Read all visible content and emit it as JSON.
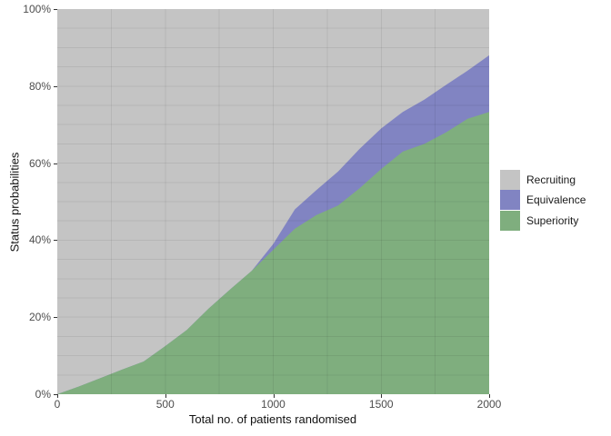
{
  "figure": {
    "x_axis": {
      "title": "Total no. of patients randomised",
      "tick_values": [
        0,
        500,
        1000,
        1500,
        2000
      ],
      "tick_labels": [
        "0",
        "500",
        "1000",
        "1500",
        "2000"
      ],
      "range": [
        0,
        2000
      ]
    },
    "y_axis": {
      "title": "Status probabilities",
      "tick_values": [
        0,
        20,
        40,
        60,
        80,
        100
      ],
      "tick_labels": [
        "0%",
        "20%",
        "40%",
        "60%",
        "80%",
        "100%"
      ],
      "range": [
        0,
        100
      ]
    },
    "legend": {
      "items": [
        {
          "label": "Recruiting",
          "color": "#c4c4c4"
        },
        {
          "label": "Equivalence",
          "color": "#8184c2"
        },
        {
          "label": "Superiority",
          "color": "#7fae7e"
        }
      ]
    }
  },
  "chart_data": {
    "type": "area",
    "stacked": true,
    "xlabel": "Total no. of patients randomised",
    "ylabel": "Status probabilities",
    "x_range": [
      0,
      2000
    ],
    "y_range": [
      0,
      100
    ],
    "y_unit": "percent",
    "legend_position": "right",
    "grid": {
      "h_step_pct": 5,
      "v_step_x": 250,
      "line_color": "rgba(0,0,0,0.07)"
    },
    "x": [
      0,
      100,
      200,
      300,
      400,
      500,
      600,
      700,
      800,
      900,
      1000,
      1100,
      1200,
      1300,
      1400,
      1500,
      1600,
      1700,
      1800,
      1900,
      2000
    ],
    "series": [
      {
        "name": "Superiority",
        "color": "#7fae7e",
        "values": [
          0,
          2,
          4.2,
          6.4,
          8.5,
          12.5,
          16.7,
          22.2,
          27.2,
          32,
          37.5,
          43,
          46.5,
          49,
          53.5,
          58.5,
          63,
          65,
          68,
          71.5,
          73.3
        ]
      },
      {
        "name": "Equivalence",
        "color": "#8184c2",
        "values": [
          0,
          0,
          0,
          0,
          0,
          0,
          0,
          0,
          0,
          0,
          1.5,
          5,
          6.5,
          8.8,
          10.2,
          10.5,
          10.3,
          11.5,
          12.3,
          12.5,
          14.7
        ]
      },
      {
        "name": "Recruiting",
        "color": "#c4c4c4",
        "values": [
          100,
          98,
          95.8,
          93.6,
          91.5,
          87.5,
          83.3,
          77.8,
          72.8,
          68,
          61,
          52,
          47,
          42.2,
          36.3,
          31,
          26.7,
          23.5,
          19.7,
          16,
          12
        ]
      }
    ]
  }
}
